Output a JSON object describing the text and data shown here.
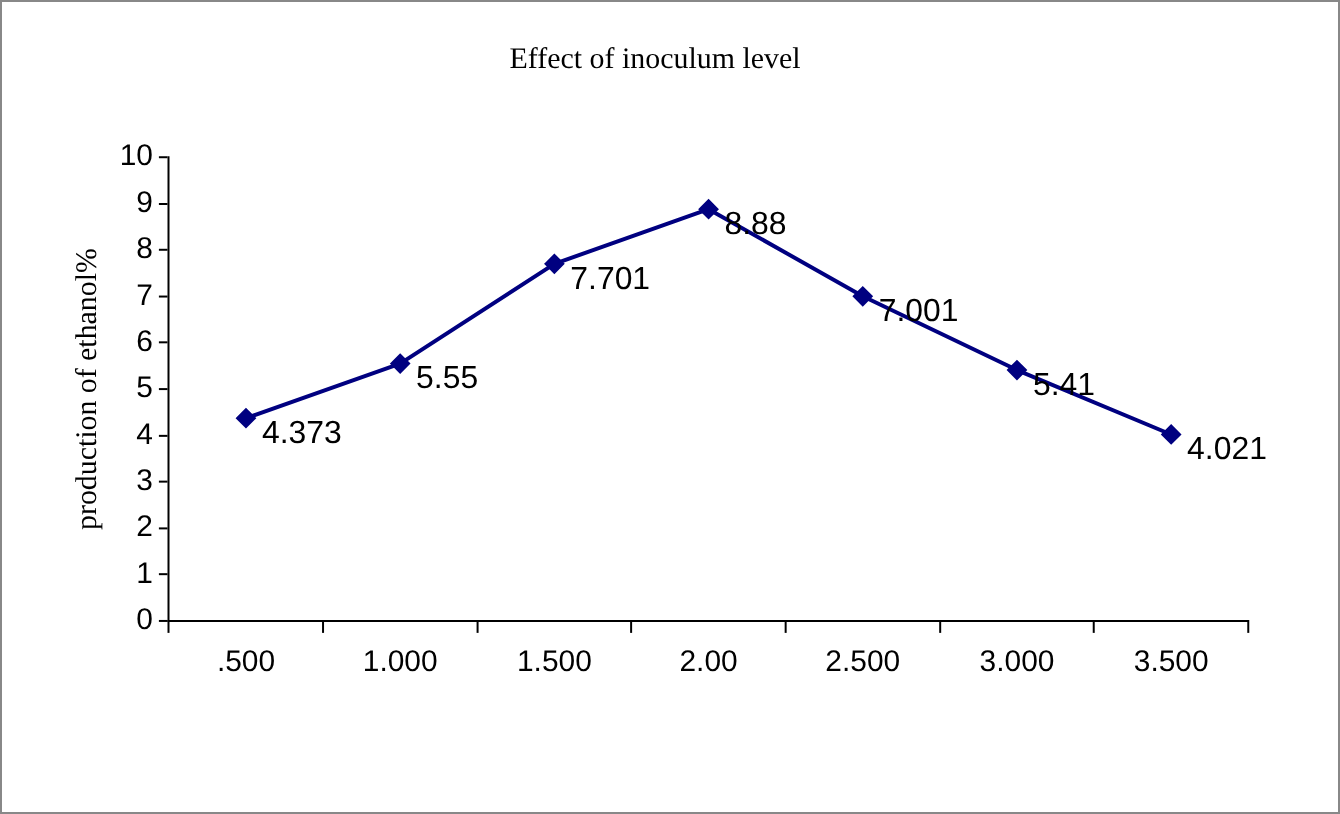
{
  "chart_data": {
    "type": "line",
    "title": "Effect of inoculum level",
    "ylabel": "production of ethanol%",
    "categories": [
      ".500",
      "1.000",
      "1.500",
      "2.00",
      "2.500",
      "3.000",
      "3.500"
    ],
    "series": [
      {
        "color": "#000080",
        "values": [
          4.373,
          5.55,
          7.701,
          8.88,
          7.001,
          5.41,
          4.021
        ]
      }
    ],
    "ylim": [
      0,
      10
    ],
    "yticks": [
      0,
      1,
      2,
      3,
      4,
      5,
      6,
      7,
      8,
      9,
      10
    ],
    "grid": false,
    "legend": false,
    "marker": "diamond",
    "line_style": "solid",
    "data_labels": true
  }
}
